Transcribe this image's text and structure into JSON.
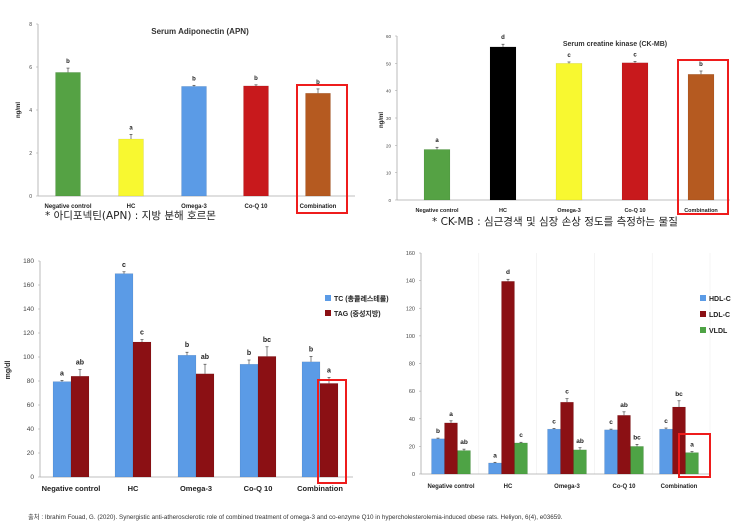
{
  "chart_data": [
    {
      "type": "bar",
      "title": "Serum Adiponectin (APN)",
      "ylabel": "ng/ml",
      "ylim": [
        0,
        8
      ],
      "yticks": [
        0,
        2,
        4,
        6,
        8
      ],
      "categories": [
        "Negative control",
        "HC",
        "Omega-3",
        "Co-Q 10",
        "Combination"
      ],
      "series": [
        {
          "name": "APN",
          "values": [
            5.75,
            2.65,
            5.1,
            5.12,
            4.78
          ],
          "errors": [
            0.2,
            0.22,
            0.05,
            0.05,
            0.2
          ],
          "letters": [
            "b",
            "a",
            "b",
            "b",
            "b"
          ],
          "colors": [
            "#55a244",
            "#f8f830",
            "#5b9be6",
            "#c8191c",
            "#b55a20"
          ]
        }
      ],
      "highlight": "Combination",
      "caption": "*  아디포넥틴(APN) : 지방 분해 호르몬"
    },
    {
      "type": "bar",
      "title": "Serum creatine kinase (CK-MB)",
      "ylabel": "ng/ml",
      "ylim": [
        0,
        60
      ],
      "yticks": [
        0,
        10,
        20,
        30,
        40,
        50,
        60
      ],
      "categories": [
        "Negative control",
        "HC",
        "Omega-3",
        "Co-Q 10",
        "Combination"
      ],
      "series": [
        {
          "name": "CK-MB",
          "values": [
            18.5,
            56,
            50,
            50.2,
            46
          ],
          "errors": [
            0.8,
            1.0,
            0.5,
            0.5,
            1.2
          ],
          "letters": [
            "a",
            "d",
            "c",
            "c",
            "b"
          ],
          "colors": [
            "#55a244",
            "#000000",
            "#f8f830",
            "#c8191c",
            "#b55a20"
          ]
        }
      ],
      "highlight": "Combination",
      "caption": "*  CK-MB : 심근경색 및 심장 손상 정도를 측정하는 물질"
    },
    {
      "type": "bar",
      "title": "",
      "ylabel": "mg/dl",
      "ylim": [
        0,
        180
      ],
      "yticks": [
        0,
        20,
        40,
        60,
        80,
        100,
        120,
        140,
        160,
        180
      ],
      "categories": [
        "Negative control",
        "HC",
        "Omega-3",
        "Co-Q 10",
        "Combination"
      ],
      "series": [
        {
          "name": "TC (총콜레스테롤)",
          "color": "#5b9be6",
          "values": [
            79.5,
            169.5,
            101.5,
            94,
            96
          ],
          "errors": [
            1,
            1.5,
            2.5,
            3.5,
            4.5
          ],
          "letters": [
            "a",
            "c",
            "b",
            "b",
            "b"
          ]
        },
        {
          "name": "TAG (중성지방)",
          "color": "#8b1014",
          "values": [
            84,
            112.5,
            86,
            100.5,
            78
          ],
          "errors": [
            5.5,
            2,
            8,
            8,
            5
          ],
          "letters": [
            "ab",
            "c",
            "ab",
            "bc",
            "a"
          ]
        }
      ],
      "highlight": "Combination-TAG",
      "legend": "right"
    },
    {
      "type": "bar",
      "title": "",
      "ylabel": "",
      "ylim": [
        0,
        160
      ],
      "yticks": [
        0,
        20,
        40,
        60,
        80,
        100,
        120,
        140,
        160
      ],
      "categories": [
        "Negative control",
        "HC",
        "Omega-3",
        "Co-Q 10",
        "Combination"
      ],
      "series": [
        {
          "name": "HDL-C",
          "color": "#5b9be6",
          "values": [
            25.5,
            8,
            32.5,
            32,
            32.5
          ],
          "errors": [
            0.5,
            0.5,
            0.5,
            0.5,
            0.8
          ],
          "letters": [
            "b",
            "a",
            "c",
            "c",
            "c"
          ]
        },
        {
          "name": "LDL-C",
          "color": "#8b1014",
          "values": [
            37,
            139.5,
            52,
            42.5,
            48.5
          ],
          "errors": [
            1.5,
            1.5,
            2.5,
            2.5,
            4.5
          ],
          "letters": [
            "a",
            "d",
            "c",
            "ab",
            "bc"
          ]
        },
        {
          "name": "VLDL",
          "color": "#4ea345",
          "values": [
            17,
            22.5,
            17.5,
            20,
            15.5
          ],
          "errors": [
            1,
            0.5,
            1.5,
            1.5,
            0.8
          ],
          "letters": [
            "ab",
            "c",
            "ab",
            "bc",
            "a"
          ]
        }
      ],
      "highlight": "Combination-VLDL",
      "legend": "right"
    }
  ],
  "citation": "출처 : Ibrahim Fouad, G. (2020). Synergistic anti-atherosclerotic role of combined treatment of omega-3 and co-enzyme Q10 in hypercholesterolemia-induced obese rats. Heliyon, 6(4), e03659."
}
